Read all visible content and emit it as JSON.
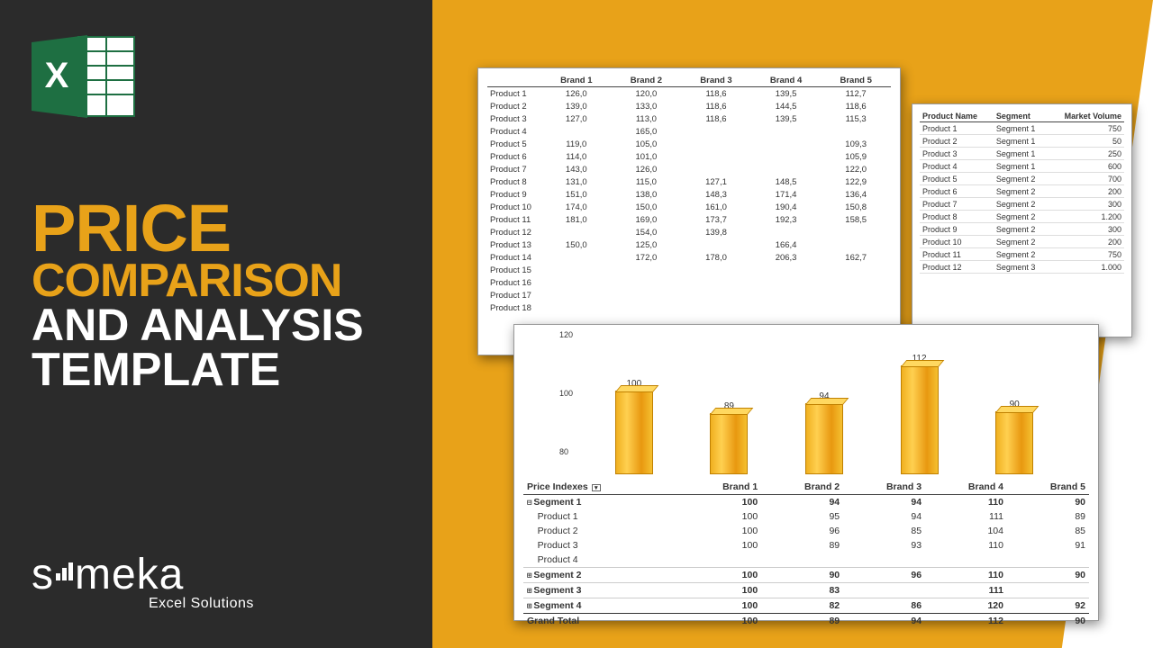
{
  "title": {
    "l1": "PRICE",
    "l2": "COMPARISON",
    "l3": "AND ANALYSIS",
    "l4": "TEMPLATE"
  },
  "logo": {
    "name": "someka",
    "tagline": "Excel Solutions"
  },
  "colors": {
    "dark": "#2b2b2b",
    "accent": "#e8a219",
    "white": "#ffffff",
    "bar_fill": "#f0b020"
  },
  "price_table": {
    "headers": [
      "",
      "Brand 1",
      "Brand 2",
      "Brand 3",
      "Brand 4",
      "Brand 5"
    ],
    "rows": [
      [
        "Product 1",
        "126,0",
        "120,0",
        "118,6",
        "139,5",
        "112,7"
      ],
      [
        "Product 2",
        "139,0",
        "133,0",
        "118,6",
        "144,5",
        "118,6"
      ],
      [
        "Product 3",
        "127,0",
        "113,0",
        "118,6",
        "139,5",
        "115,3"
      ],
      [
        "Product 4",
        "",
        "165,0",
        "",
        "",
        ""
      ],
      [
        "Product 5",
        "119,0",
        "105,0",
        "",
        "",
        "109,3"
      ],
      [
        "Product 6",
        "114,0",
        "101,0",
        "",
        "",
        "105,9"
      ],
      [
        "Product 7",
        "143,0",
        "126,0",
        "",
        "",
        "122,0"
      ],
      [
        "Product 8",
        "131,0",
        "115,0",
        "127,1",
        "148,5",
        "122,9"
      ],
      [
        "Product 9",
        "151,0",
        "138,0",
        "148,3",
        "171,4",
        "136,4"
      ],
      [
        "Product 10",
        "174,0",
        "150,0",
        "161,0",
        "190,4",
        "150,8"
      ],
      [
        "Product 11",
        "181,0",
        "169,0",
        "173,7",
        "192,3",
        "158,5"
      ],
      [
        "Product 12",
        "",
        "154,0",
        "139,8",
        "",
        ""
      ],
      [
        "Product 13",
        "150,0",
        "125,0",
        "",
        "166,4",
        ""
      ],
      [
        "Product 14",
        "",
        "172,0",
        "178,0",
        "206,3",
        "162,7"
      ],
      [
        "Product 15",
        "",
        "",
        "",
        "",
        ""
      ],
      [
        "Product 16",
        "",
        "",
        "",
        "",
        ""
      ],
      [
        "Product 17",
        "",
        "",
        "",
        "",
        ""
      ],
      [
        "Product 18",
        "",
        "",
        "",
        "",
        ""
      ]
    ]
  },
  "segment_table": {
    "headers": [
      "Product Name",
      "Segment",
      "Market Volume"
    ],
    "rows": [
      [
        "Product 1",
        "Segment 1",
        "750"
      ],
      [
        "Product 2",
        "Segment 1",
        "50"
      ],
      [
        "Product 3",
        "Segment 1",
        "250"
      ],
      [
        "Product 4",
        "Segment 1",
        "600"
      ],
      [
        "Product 5",
        "Segment 2",
        "700"
      ],
      [
        "Product 6",
        "Segment 2",
        "200"
      ],
      [
        "Product 7",
        "Segment 2",
        "300"
      ],
      [
        "Product 8",
        "Segment 2",
        "1.200"
      ],
      [
        "Product 9",
        "Segment 2",
        "300"
      ],
      [
        "Product 10",
        "Segment 2",
        "200"
      ],
      [
        "Product 11",
        "Segment 2",
        "750"
      ],
      [
        "Product 12",
        "Segment 3",
        "1.000"
      ]
    ]
  },
  "chart": {
    "type": "bar",
    "ylim": [
      60,
      120
    ],
    "yticks": [
      80,
      100,
      120
    ],
    "bars": [
      {
        "label": "Brand 1",
        "value": 100
      },
      {
        "label": "Brand 2",
        "value": 89
      },
      {
        "label": "Brand 3",
        "value": 94
      },
      {
        "label": "Brand 4",
        "value": 112
      },
      {
        "label": "Brand 5",
        "value": 90
      }
    ],
    "bar_color": "#f0b020"
  },
  "index_table": {
    "header": "Price Indexes",
    "brands": [
      "Brand 1",
      "Brand 2",
      "Brand 3",
      "Brand 4",
      "Brand 5"
    ],
    "rows": [
      {
        "type": "seg",
        "exp": "⊟",
        "label": "Segment 1",
        "v": [
          "100",
          "94",
          "94",
          "110",
          "90"
        ]
      },
      {
        "type": "prod",
        "label": "Product 1",
        "v": [
          "100",
          "95",
          "94",
          "111",
          "89"
        ]
      },
      {
        "type": "prod",
        "label": "Product 2",
        "v": [
          "100",
          "96",
          "85",
          "104",
          "85"
        ]
      },
      {
        "type": "prod",
        "label": "Product 3",
        "v": [
          "100",
          "89",
          "93",
          "110",
          "91"
        ]
      },
      {
        "type": "prod",
        "label": "Product 4",
        "v": [
          "",
          "",
          "",
          "",
          ""
        ]
      },
      {
        "type": "seg",
        "exp": "⊞",
        "label": "Segment 2",
        "v": [
          "100",
          "90",
          "96",
          "110",
          "90"
        ]
      },
      {
        "type": "seg",
        "exp": "⊞",
        "label": "Segment 3",
        "v": [
          "100",
          "83",
          "",
          "111",
          ""
        ]
      },
      {
        "type": "seg",
        "exp": "⊞",
        "label": "Segment 4",
        "v": [
          "100",
          "82",
          "86",
          "120",
          "92"
        ]
      },
      {
        "type": "grand",
        "label": "Grand Total",
        "v": [
          "100",
          "89",
          "94",
          "112",
          "90"
        ]
      }
    ]
  }
}
